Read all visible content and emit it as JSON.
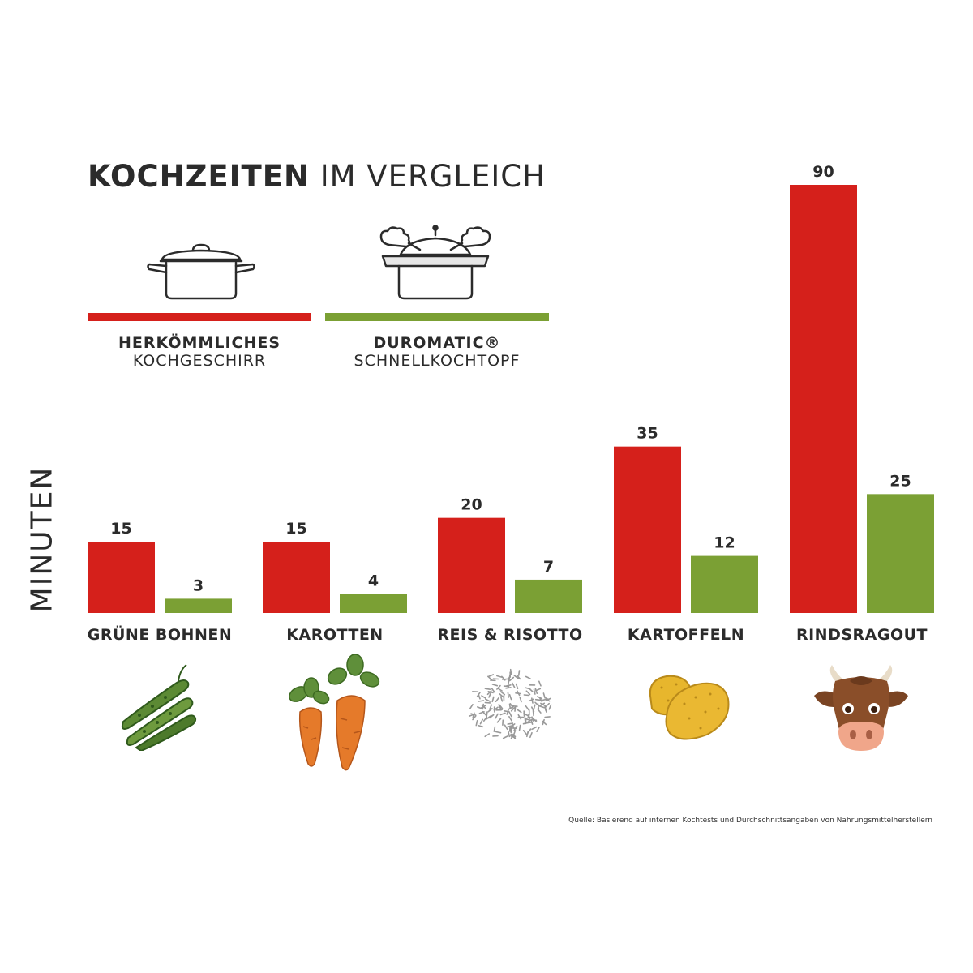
{
  "title": {
    "bold": "KOCHZEITEN",
    "light": "IM VERGLEICH"
  },
  "legend": {
    "conventional": {
      "line1": "HERKÖMMLICHES",
      "line2": "KOCHGESCHIRR",
      "icon": "pot-icon"
    },
    "pressure": {
      "line1": "DUROMATIC®",
      "line2": "SCHNELLKOCHTOPF",
      "icon": "pressure-cooker-icon"
    }
  },
  "colors": {
    "conventional": "#d5201b",
    "pressure": "#7ba034",
    "text": "#2b2b2b"
  },
  "chart_data": {
    "type": "bar",
    "ylabel": "MINUTEN",
    "xlabel": "",
    "ylim": [
      0,
      90
    ],
    "grid": false,
    "categories": [
      "GRÜNE BOHNEN",
      "KAROTTEN",
      "REIS & RISOTTO",
      "KARTOFFELN",
      "RINDSRAGOUT"
    ],
    "series": [
      {
        "name": "HERKÖMMLICHES KOCHGESCHIRR",
        "color": "#d5201b",
        "values": [
          15,
          15,
          20,
          35,
          90
        ]
      },
      {
        "name": "DUROMATIC® SCHNELLKOCHTOPF",
        "color": "#7ba034",
        "values": [
          3,
          4,
          7,
          12,
          25
        ]
      }
    ],
    "category_icons": [
      "green-beans-icon",
      "carrots-icon",
      "rice-icon",
      "potatoes-icon",
      "cow-icon"
    ]
  },
  "source": "Quelle: Basierend auf internen Kochtests und Durchschnittsangaben von Nahrungsmittelherstellern"
}
